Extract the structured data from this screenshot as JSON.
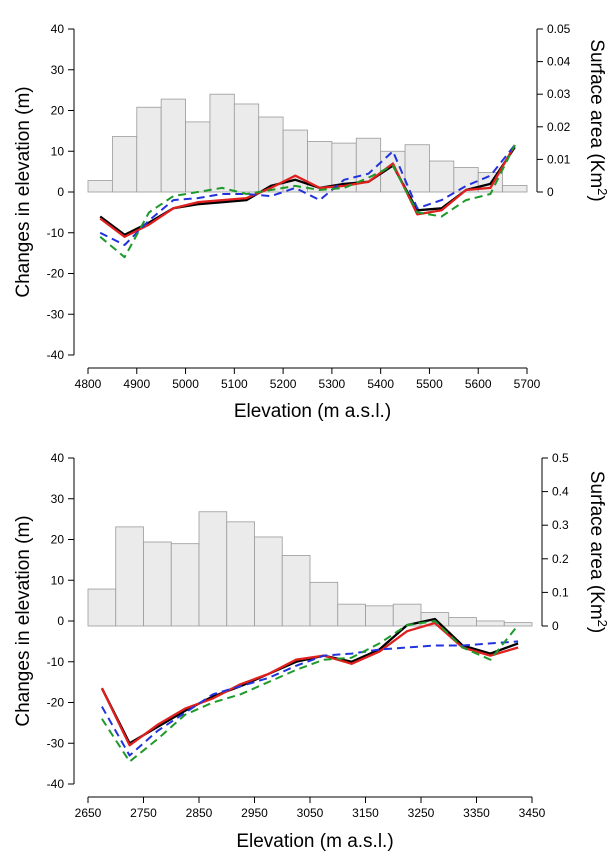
{
  "chart_data": [
    {
      "type": "bar+line",
      "xlabel": "Elevation (m a.s.l.)",
      "ylabel": "Changes in elevation (m)",
      "y2label_main": "Surface area (Km",
      "y2label_sup": "2",
      "y2label_end": ")",
      "xlim": [
        4800,
        5700
      ],
      "ylim": [
        -40,
        40
      ],
      "y2lim": [
        0,
        0.05
      ],
      "xticks": [
        "4800",
        "4900",
        "5000",
        "5100",
        "5200",
        "5300",
        "5400",
        "5500",
        "5600",
        "5700"
      ],
      "yticks": [
        "40",
        "30",
        "20",
        "10",
        "0",
        "-10",
        "-20",
        "-30",
        "-40"
      ],
      "y2ticks": [
        "0.05",
        "0.04",
        "0.03",
        "0.02",
        "0.01",
        "0"
      ],
      "bars": {
        "x0": [
          4800,
          4850,
          4900,
          4950,
          5000,
          5050,
          5100,
          5150,
          5200,
          5250,
          5300,
          5350,
          5400,
          5450,
          5500,
          5550,
          5600,
          5650
        ],
        "width": 50,
        "values": [
          0.0035,
          0.017,
          0.026,
          0.0285,
          0.0215,
          0.03,
          0.027,
          0.023,
          0.019,
          0.0155,
          0.015,
          0.0165,
          0.0125,
          0.0145,
          0.0095,
          0.0075,
          0.006,
          0.002
        ]
      },
      "series": [
        {
          "color": "#000000",
          "dash": "solid",
          "x": [
            4825,
            4875,
            4925,
            4975,
            5025,
            5075,
            5125,
            5175,
            5225,
            5275,
            5325,
            5375,
            5425,
            5475,
            5525,
            5575,
            5625,
            5675
          ],
          "values": [
            -6,
            -10.5,
            -7.5,
            -4,
            -3,
            -2.5,
            -2,
            1.5,
            3,
            1,
            2,
            2.5,
            6.5,
            -4.5,
            -4,
            0.5,
            2,
            11
          ]
        },
        {
          "color": "#e0201f",
          "dash": "solid",
          "x": [
            4825,
            4875,
            4925,
            4975,
            5025,
            5075,
            5125,
            5175,
            5225,
            5275,
            5325,
            5375,
            5425,
            5475,
            5525,
            5575,
            5625,
            5675
          ],
          "values": [
            -6.5,
            -11,
            -8,
            -4,
            -2.5,
            -2,
            -1.5,
            1,
            4,
            1,
            1.5,
            2.5,
            7,
            -5.5,
            -4.5,
            0.5,
            1,
            11.5
          ]
        },
        {
          "color": "#2233dd",
          "dash": "dashed",
          "x": [
            4825,
            4875,
            4925,
            4975,
            5025,
            5075,
            5125,
            5175,
            5225,
            5275,
            5325,
            5375,
            5425,
            5475,
            5525,
            5575,
            5625,
            5675
          ],
          "values": [
            -10,
            -13,
            -7,
            -2,
            -1.5,
            -0.5,
            -0.5,
            -1,
            1,
            -2,
            3,
            4.5,
            10,
            -4,
            -2,
            1.5,
            4,
            11.5
          ]
        },
        {
          "color": "#1e9a2a",
          "dash": "dashed",
          "x": [
            4825,
            4875,
            4925,
            4975,
            5025,
            5075,
            5125,
            5175,
            5225,
            5275,
            5325,
            5375,
            5425,
            5475,
            5525,
            5575,
            5625,
            5675
          ],
          "values": [
            -11,
            -16,
            -5,
            -1,
            0,
            1,
            -0.5,
            0.5,
            1.5,
            0.5,
            1,
            3.5,
            6.5,
            -5,
            -6,
            -2,
            -0.5,
            11.5
          ]
        }
      ]
    },
    {
      "type": "bar+line",
      "xlabel": "Elevation (m a.s.l.)",
      "ylabel": "Changes in elevation (m)",
      "y2label_main": "Surface area (Km",
      "y2label_sup": "2",
      "y2label_end": ")",
      "xlim": [
        2650,
        3450
      ],
      "ylim": [
        -40,
        40
      ],
      "y2lim": [
        0,
        0.5
      ],
      "xticks": [
        "2650",
        "2750",
        "2850",
        "2950",
        "3050",
        "3150",
        "3250",
        "3350",
        "3450"
      ],
      "yticks": [
        "40",
        "30",
        "20",
        "10",
        "0",
        "-10",
        "-20",
        "-30",
        "-40"
      ],
      "y2ticks": [
        "0.5",
        "0.4",
        "0.3",
        "0.2",
        "0.1",
        "0"
      ],
      "bars": {
        "x0": [
          2650,
          2700,
          2750,
          2800,
          2850,
          2900,
          2950,
          3000,
          3050,
          3100,
          3150,
          3200,
          3250,
          3300,
          3350,
          3400
        ],
        "width": 50,
        "values": [
          0.11,
          0.295,
          0.25,
          0.245,
          0.34,
          0.31,
          0.265,
          0.21,
          0.13,
          0.065,
          0.06,
          0.065,
          0.04,
          0.025,
          0.015,
          0.01
        ]
      },
      "series": [
        {
          "color": "#000000",
          "dash": "solid",
          "x": [
            2675,
            2725,
            2775,
            2825,
            2875,
            2925,
            2975,
            3025,
            3075,
            3125,
            3175,
            3225,
            3275,
            3325,
            3375,
            3425
          ],
          "values": [
            -16.5,
            -30,
            -26,
            -22,
            -18.5,
            -16,
            -13,
            -10,
            -8.5,
            -10,
            -7,
            -1,
            0.5,
            -6,
            -8,
            -5.5
          ]
        },
        {
          "color": "#e0201f",
          "dash": "solid",
          "x": [
            2675,
            2725,
            2775,
            2825,
            2875,
            2925,
            2975,
            3025,
            3075,
            3125,
            3175,
            3225,
            3275,
            3325,
            3375,
            3425
          ],
          "values": [
            -16.5,
            -30.5,
            -25.5,
            -21.5,
            -19,
            -15.5,
            -13,
            -9.5,
            -8.5,
            -10.5,
            -7.5,
            -2.5,
            -0.5,
            -6.5,
            -8.5,
            -6.5
          ]
        },
        {
          "color": "#2233dd",
          "dash": "dashed",
          "x": [
            2675,
            2725,
            2775,
            2825,
            2875,
            2925,
            2975,
            3025,
            3075,
            3125,
            3175,
            3225,
            3275,
            3325,
            3375,
            3425
          ],
          "values": [
            -21,
            -33,
            -27,
            -22.5,
            -18,
            -16,
            -14,
            -11,
            -8.5,
            -8,
            -7,
            -6.5,
            -6,
            -6,
            -5.5,
            -5
          ]
        },
        {
          "color": "#1e9a2a",
          "dash": "dashed",
          "x": [
            2675,
            2725,
            2775,
            2825,
            2875,
            2925,
            2975,
            3025,
            3075,
            3125,
            3175,
            3225,
            3275,
            3325,
            3375,
            3425
          ],
          "values": [
            -24,
            -34.5,
            -29,
            -23,
            -20,
            -18,
            -15,
            -12,
            -9.5,
            -9,
            -5.5,
            -1,
            0,
            -6.5,
            -9.5,
            -1
          ]
        }
      ]
    }
  ]
}
